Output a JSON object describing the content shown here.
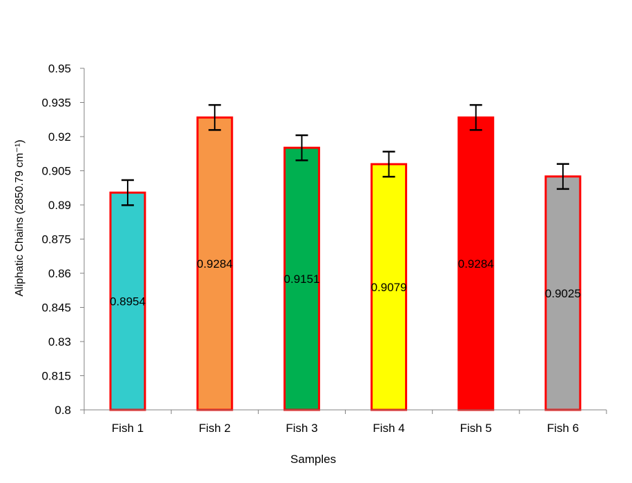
{
  "chart_data": {
    "type": "bar",
    "title": "",
    "xlabel": "Samples",
    "ylabel": "Aliphatic Chains (2850.79 cm⁻¹)",
    "ylim": [
      0.8,
      0.95
    ],
    "yticks": [
      "0.8",
      "0.815",
      "0.83",
      "0.845",
      "0.86",
      "0.875",
      "0.89",
      "0.905",
      "0.92",
      "0.935",
      "0.95"
    ],
    "categories": [
      "Fish 1",
      "Fish 2",
      "Fish 3",
      "Fish 4",
      "Fish 5",
      "Fish 6"
    ],
    "values": [
      0.8954,
      0.9284,
      0.9151,
      0.9079,
      0.9284,
      0.9025
    ],
    "value_labels": [
      "0.8954",
      "0.9284",
      "0.9151",
      "0.9079",
      "0.9284",
      "0.9025"
    ],
    "errors": [
      0.0055,
      0.0055,
      0.0055,
      0.0055,
      0.0055,
      0.0055
    ],
    "bar_colors": [
      "#33CCCC",
      "#F79646",
      "#00B050",
      "#FFFF00",
      "#FF0000",
      "#A6A6A6"
    ],
    "bar_border_color": "#FF0000",
    "grid": false,
    "legend": "none"
  }
}
